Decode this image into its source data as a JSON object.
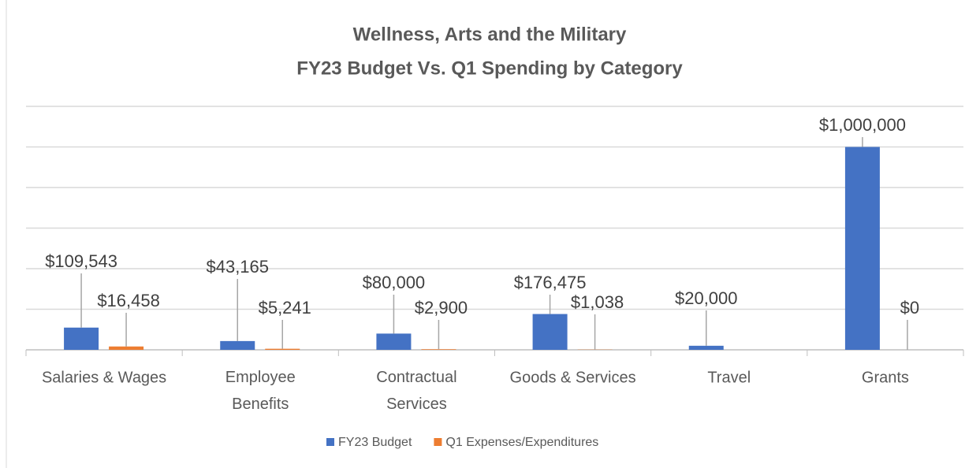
{
  "chart_data": {
    "type": "bar",
    "title": "Wellness, Arts and the Military",
    "subtitle": "FY23 Budget Vs. Q1 Spending by Category",
    "categories": [
      "Salaries & Wages",
      "Employee Benefits",
      "Contractual Services",
      "Goods & Services",
      "Travel",
      "Grants"
    ],
    "series": [
      {
        "name": "FY23 Budget",
        "color": "#4472c4",
        "values": [
          109543,
          43165,
          80000,
          176475,
          20000,
          1000000
        ],
        "value_labels": [
          "$109,543",
          "$43,165",
          "$80,000",
          "$176,475",
          "$20,000",
          "$1,000,000"
        ]
      },
      {
        "name": "Q1 Expenses/Expenditures",
        "color": "#ed7d31",
        "values": [
          16458,
          5241,
          2900,
          1038,
          null,
          0
        ],
        "value_labels": [
          "$16,458",
          "$5,241",
          "$2,900",
          "$1,038",
          null,
          "$0"
        ]
      }
    ],
    "ylim": [
      0,
      1200000
    ],
    "yticks": [
      0,
      200000,
      400000,
      600000,
      800000,
      1000000,
      1200000
    ],
    "grid": true,
    "legend": "bottom"
  }
}
